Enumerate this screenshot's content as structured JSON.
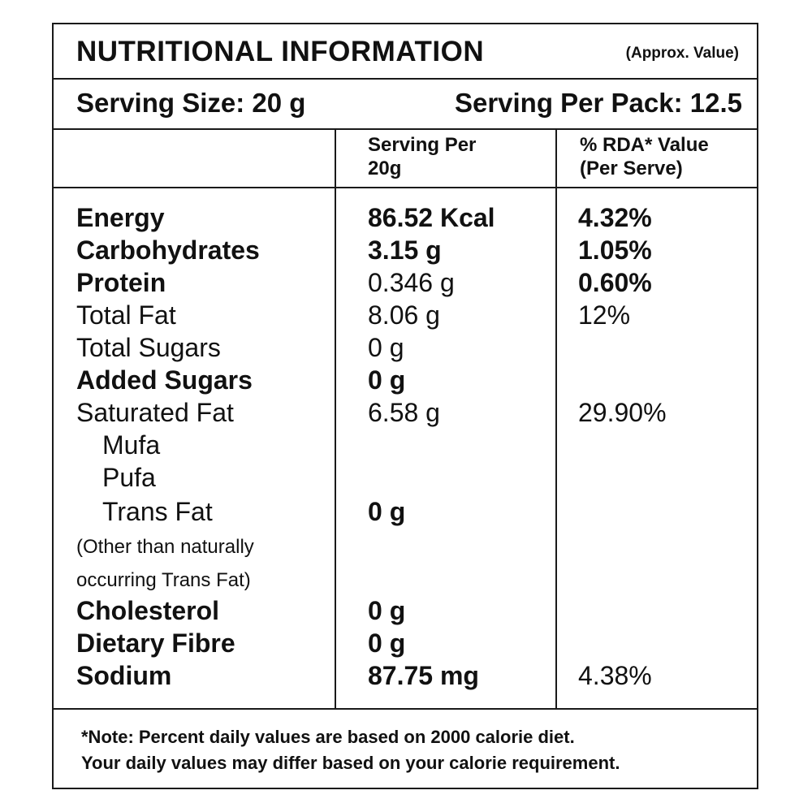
{
  "header": {
    "title": "NUTRITIONAL INFORMATION",
    "approx": "(Approx. Value)",
    "serving_size": "Serving Size: 20 g",
    "serving_per_pack": "Serving Per Pack: 12.5"
  },
  "columns": {
    "per_serving_line1": "Serving Per",
    "per_serving_line2": "20g",
    "rda_line1": "% RDA* Value",
    "rda_line2": "(Per Serve)"
  },
  "rows": [
    {
      "name": "Energy",
      "value": "86.52 Kcal",
      "rda": "4.32%"
    },
    {
      "name": "Carbohydrates",
      "value": "3.15 g",
      "rda": "1.05%"
    },
    {
      "name": "Protein",
      "value": "0.346 g",
      "rda": "0.60%"
    },
    {
      "name": "Total Fat",
      "value": "8.06 g",
      "rda": "12%"
    },
    {
      "name": "Total Sugars",
      "value": "0 g",
      "rda": ""
    },
    {
      "name": "Added Sugars",
      "value": "0 g",
      "rda": ""
    },
    {
      "name": "Saturated Fat",
      "value": "6.58 g",
      "rda": "29.90%"
    },
    {
      "name": "Mufa",
      "value": "",
      "rda": ""
    },
    {
      "name": "Pufa",
      "value": "",
      "rda": ""
    },
    {
      "name": "Trans Fat",
      "value": "0 g",
      "rda": ""
    },
    {
      "name": "(Other than naturally",
      "value": "",
      "rda": ""
    },
    {
      "name": "occurring Trans Fat)",
      "value": "",
      "rda": ""
    },
    {
      "name": "Cholesterol",
      "value": "0 g",
      "rda": ""
    },
    {
      "name": "Dietary Fibre",
      "value": "0 g",
      "rda": ""
    },
    {
      "name": "Sodium",
      "value": "87.75 mg",
      "rda": "4.38%"
    }
  ],
  "note": {
    "line1": "*Note: Percent daily values are based on 2000 calorie diet.",
    "line2": "Your daily values may differ based on your calorie requirement."
  }
}
